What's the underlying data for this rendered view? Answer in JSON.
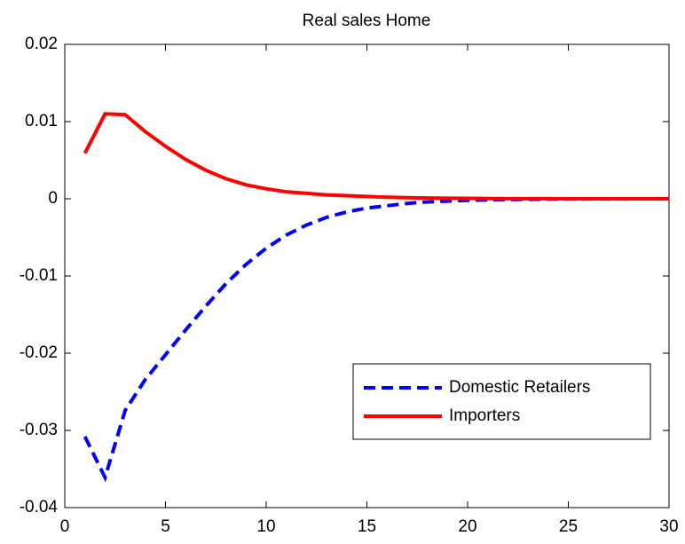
{
  "chart_data": {
    "type": "line",
    "title": "Real sales Home",
    "x": [
      1,
      2,
      3,
      4,
      5,
      6,
      7,
      8,
      9,
      10,
      11,
      12,
      13,
      14,
      15,
      16,
      17,
      18,
      19,
      20,
      21,
      22,
      23,
      24,
      25,
      26,
      27,
      28,
      29,
      30
    ],
    "series": [
      {
        "name": "Domestic Retailers",
        "color": "#0000ff",
        "dash": true,
        "values": [
          -0.0308,
          -0.0361,
          -0.0274,
          -0.0234,
          -0.0202,
          -0.017,
          -0.0139,
          -0.011,
          -0.0085,
          -0.0064,
          -0.0047,
          -0.0034,
          -0.0024,
          -0.0017,
          -0.0012,
          -0.0009,
          -0.0006,
          -0.0004,
          -0.0003,
          -0.0002,
          -0.00015,
          -0.0001,
          -7e-05,
          -5e-05,
          -3e-05,
          -2e-05,
          -1e-05,
          -1e-05,
          0,
          0
        ]
      },
      {
        "name": "Importers",
        "color": "#ff0000",
        "dash": false,
        "values": [
          0.0059,
          0.011,
          0.0109,
          0.0087,
          0.0068,
          0.0051,
          0.0037,
          0.0026,
          0.0018,
          0.0013,
          0.0009,
          0.0007,
          0.0005,
          0.0004,
          0.0003,
          0.0002,
          0.00015,
          0.0001,
          7e-05,
          5e-05,
          3e-05,
          2e-05,
          1e-05,
          1e-05,
          0,
          0,
          0,
          0,
          0,
          0
        ]
      }
    ],
    "xlim": [
      0,
      30
    ],
    "xticks": [
      0,
      5,
      10,
      15,
      20,
      25,
      30
    ],
    "ylim": [
      -0.04,
      0.02
    ],
    "yticks": [
      -0.04,
      -0.03,
      -0.02,
      -0.01,
      0,
      0.01,
      0.02
    ],
    "grid": false,
    "legend": "lower right"
  }
}
